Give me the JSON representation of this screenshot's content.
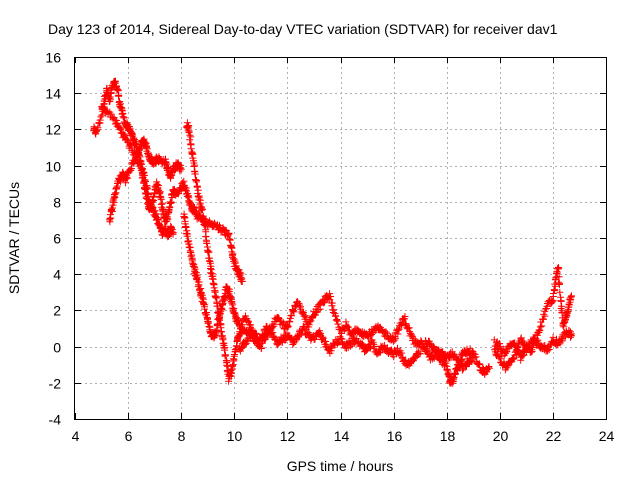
{
  "chart_data": {
    "type": "scatter",
    "title": "Day 123 of 2014, Sidereal Day-to-day VTEC variation (SDTVAR) for receiver dav1",
    "xlabel": "GPS time / hours",
    "ylabel": "SDTVAR / TECUs",
    "xlim": [
      4,
      24
    ],
    "ylim": [
      -4,
      16
    ],
    "xticks": [
      4,
      6,
      8,
      10,
      12,
      14,
      16,
      18,
      20,
      22,
      24
    ],
    "yticks": [
      -4,
      -2,
      0,
      2,
      4,
      6,
      8,
      10,
      12,
      14,
      16
    ],
    "grid": true,
    "marker": "+",
    "color": "#ff0000",
    "series": [
      {
        "name": "SDTVAR",
        "anchors": [
          [
            4.7,
            12.0
          ],
          [
            4.8,
            11.8
          ],
          [
            5.0,
            12.8
          ],
          [
            5.1,
            13.6
          ],
          [
            5.2,
            14.2
          ],
          [
            5.3,
            13.5
          ],
          [
            5.4,
            14.3
          ],
          [
            5.5,
            14.6
          ],
          [
            5.6,
            14.2
          ],
          [
            5.7,
            13.4
          ],
          [
            5.8,
            12.8
          ],
          [
            5.9,
            12.3
          ],
          [
            6.0,
            12.1
          ],
          [
            6.1,
            11.8
          ],
          [
            6.2,
            11.4
          ],
          [
            6.3,
            11.2
          ],
          [
            6.4,
            10.6
          ],
          [
            6.5,
            10.0
          ],
          [
            6.6,
            9.4
          ],
          [
            6.7,
            8.8
          ],
          [
            6.8,
            8.0
          ],
          [
            6.9,
            7.7
          ],
          [
            7.0,
            7.4
          ],
          [
            7.1,
            7.0
          ],
          [
            7.2,
            6.6
          ],
          [
            7.3,
            6.3
          ],
          [
            7.4,
            6.5
          ],
          [
            7.5,
            6.2
          ],
          [
            7.6,
            6.5
          ],
          [
            7.7,
            6.3
          ]
        ],
        "anchors_b": [
          [
            5.3,
            7.0
          ],
          [
            5.4,
            7.6
          ],
          [
            5.5,
            8.4
          ],
          [
            5.6,
            9.0
          ],
          [
            5.7,
            9.3
          ],
          [
            5.8,
            9.5
          ],
          [
            5.9,
            9.2
          ],
          [
            6.0,
            9.6
          ],
          [
            6.2,
            10.2
          ],
          [
            6.4,
            10.8
          ],
          [
            6.5,
            11.2
          ],
          [
            6.6,
            11.4
          ],
          [
            6.7,
            11.0
          ],
          [
            6.8,
            10.4
          ],
          [
            6.9,
            10.3
          ],
          [
            7.0,
            10.2
          ],
          [
            7.1,
            10.4
          ],
          [
            7.2,
            10.3
          ],
          [
            7.4,
            10.2
          ],
          [
            7.5,
            9.8
          ],
          [
            7.6,
            9.4
          ],
          [
            7.7,
            9.8
          ],
          [
            7.8,
            10.0
          ],
          [
            7.9,
            10.0
          ],
          [
            8.0,
            9.8
          ]
        ],
        "anchors_c": [
          [
            5.0,
            13.2
          ],
          [
            5.2,
            13.0
          ],
          [
            5.5,
            12.5
          ],
          [
            5.7,
            12.0
          ],
          [
            5.9,
            11.5
          ],
          [
            6.1,
            11.0
          ],
          [
            6.3,
            10.5
          ],
          [
            6.5,
            9.8
          ],
          [
            6.6,
            9.0
          ],
          [
            6.7,
            8.2
          ],
          [
            6.8,
            7.6
          ],
          [
            6.9,
            7.8
          ],
          [
            7.0,
            8.6
          ],
          [
            7.1,
            9.0
          ],
          [
            7.2,
            8.4
          ],
          [
            7.3,
            7.6
          ],
          [
            7.4,
            7.0
          ],
          [
            7.5,
            7.2
          ],
          [
            7.6,
            8.0
          ],
          [
            7.7,
            8.6
          ],
          [
            7.8,
            8.4
          ],
          [
            8.0,
            8.8
          ],
          [
            8.1,
            9.0
          ],
          [
            8.2,
            8.6
          ],
          [
            8.3,
            8.0
          ],
          [
            8.4,
            7.6
          ],
          [
            8.5,
            7.6
          ],
          [
            8.6,
            7.2
          ],
          [
            8.8,
            7.0
          ],
          [
            9.0,
            6.8
          ],
          [
            9.2,
            6.8
          ],
          [
            9.4,
            6.6
          ],
          [
            9.6,
            6.4
          ],
          [
            9.8,
            6.2
          ],
          [
            9.9,
            5.4
          ],
          [
            10.0,
            4.6
          ],
          [
            10.1,
            4.2
          ],
          [
            10.2,
            4.0
          ],
          [
            10.3,
            3.6
          ]
        ],
        "anchors_d": [
          [
            8.2,
            12.3
          ],
          [
            8.3,
            12.0
          ],
          [
            8.4,
            10.8
          ],
          [
            8.5,
            9.8
          ],
          [
            8.6,
            8.8
          ],
          [
            8.7,
            8.0
          ],
          [
            8.8,
            7.4
          ],
          [
            8.9,
            6.6
          ],
          [
            9.0,
            5.4
          ],
          [
            9.1,
            4.4
          ],
          [
            9.2,
            3.6
          ],
          [
            9.3,
            2.8
          ],
          [
            9.4,
            1.8
          ],
          [
            9.5,
            1.0
          ],
          [
            9.6,
            0.2
          ],
          [
            9.7,
            -0.8
          ],
          [
            9.8,
            -1.8
          ],
          [
            9.9,
            -1.4
          ],
          [
            10.0,
            -0.6
          ],
          [
            10.1,
            0.2
          ],
          [
            10.2,
            0.8
          ],
          [
            10.4,
            1.0
          ],
          [
            10.6,
            0.6
          ],
          [
            10.8,
            0.4
          ]
        ],
        "anchors_e": [
          [
            8.1,
            7.2
          ],
          [
            8.2,
            6.4
          ],
          [
            8.3,
            5.6
          ],
          [
            8.4,
            4.8
          ],
          [
            8.5,
            4.2
          ],
          [
            8.6,
            3.8
          ],
          [
            8.7,
            3.2
          ],
          [
            8.8,
            2.6
          ],
          [
            8.9,
            2.0
          ],
          [
            9.0,
            1.4
          ],
          [
            9.1,
            0.8
          ],
          [
            9.2,
            0.6
          ],
          [
            9.3,
            0.8
          ],
          [
            9.4,
            1.4
          ],
          [
            9.5,
            2.0
          ],
          [
            9.6,
            2.6
          ],
          [
            9.7,
            3.2
          ],
          [
            9.8,
            3.0
          ],
          [
            9.9,
            2.4
          ],
          [
            10.0,
            1.8
          ],
          [
            10.1,
            1.4
          ],
          [
            10.2,
            1.2
          ]
        ],
        "anchors_f": [
          [
            10.2,
            1.0
          ],
          [
            10.4,
            1.6
          ],
          [
            10.6,
            1.2
          ],
          [
            10.8,
            0.4
          ],
          [
            11.0,
            0.0
          ],
          [
            11.2,
            0.6
          ],
          [
            11.4,
            1.0
          ],
          [
            11.6,
            1.6
          ],
          [
            11.8,
            1.2
          ],
          [
            12.0,
            1.0
          ],
          [
            12.2,
            2.0
          ],
          [
            12.4,
            2.4
          ],
          [
            12.6,
            1.8
          ],
          [
            12.8,
            1.2
          ],
          [
            13.0,
            1.8
          ],
          [
            13.2,
            2.2
          ],
          [
            13.4,
            2.6
          ],
          [
            13.6,
            2.8
          ],
          [
            13.8,
            1.6
          ],
          [
            14.0,
            0.8
          ],
          [
            14.2,
            1.2
          ],
          [
            14.4,
            0.6
          ],
          [
            14.6,
            1.0
          ],
          [
            14.8,
            0.8
          ],
          [
            15.0,
            0.6
          ],
          [
            15.2,
            0.8
          ],
          [
            15.4,
            1.0
          ],
          [
            15.6,
            0.8
          ],
          [
            15.8,
            0.6
          ],
          [
            16.0,
            0.4
          ],
          [
            16.2,
            1.0
          ],
          [
            16.4,
            1.6
          ],
          [
            16.6,
            0.8
          ],
          [
            16.8,
            0.2
          ],
          [
            17.0,
            0.0
          ]
        ],
        "anchors_g": [
          [
            10.2,
            -0.2
          ],
          [
            10.4,
            0.2
          ],
          [
            10.6,
            0.8
          ],
          [
            10.8,
            0.6
          ],
          [
            11.0,
            0.4
          ],
          [
            11.2,
            1.0
          ],
          [
            11.4,
            0.8
          ],
          [
            11.6,
            0.2
          ],
          [
            11.8,
            0.4
          ],
          [
            12.0,
            0.6
          ],
          [
            12.2,
            0.2
          ],
          [
            12.4,
            0.6
          ],
          [
            12.6,
            1.0
          ],
          [
            12.8,
            0.6
          ],
          [
            13.0,
            0.4
          ],
          [
            13.2,
            0.8
          ],
          [
            13.4,
            0.2
          ],
          [
            13.6,
            -0.2
          ],
          [
            13.8,
            0.2
          ],
          [
            14.0,
            0.4
          ],
          [
            14.2,
            0.0
          ],
          [
            14.4,
            0.2
          ],
          [
            14.6,
            0.4
          ],
          [
            14.8,
            0.0
          ],
          [
            15.0,
            -0.2
          ],
          [
            15.2,
            0.2
          ],
          [
            15.4,
            -0.4
          ],
          [
            15.6,
            0.0
          ],
          [
            15.8,
            -0.2
          ],
          [
            16.0,
            -0.4
          ],
          [
            16.2,
            -0.2
          ],
          [
            16.4,
            -0.8
          ],
          [
            16.6,
            -1.0
          ],
          [
            16.8,
            -0.6
          ],
          [
            17.0,
            -0.4
          ]
        ],
        "anchors_h": [
          [
            17.0,
            0.2
          ],
          [
            17.2,
            -0.2
          ],
          [
            17.4,
            -0.6
          ],
          [
            17.6,
            -0.4
          ],
          [
            17.8,
            -0.8
          ],
          [
            18.0,
            -1.0
          ],
          [
            18.1,
            -1.8
          ],
          [
            18.2,
            -2.0
          ],
          [
            18.3,
            -1.6
          ],
          [
            18.4,
            -1.2
          ],
          [
            18.5,
            -0.8
          ],
          [
            18.6,
            -0.4
          ],
          [
            18.8,
            -0.2
          ],
          [
            19.0,
            -0.4
          ],
          [
            19.2,
            -1.0
          ],
          [
            19.4,
            -1.4
          ],
          [
            19.6,
            -1.2
          ]
        ],
        "anchors_i": [
          [
            17.2,
            0.4
          ],
          [
            17.4,
            0.0
          ],
          [
            17.6,
            -0.2
          ],
          [
            17.8,
            -0.4
          ],
          [
            18.0,
            -0.6
          ],
          [
            18.2,
            -0.4
          ],
          [
            18.4,
            -0.8
          ],
          [
            18.6,
            -1.2
          ],
          [
            18.8,
            -0.8
          ],
          [
            19.0,
            -0.6
          ]
        ],
        "anchors_j": [
          [
            19.8,
            -0.2
          ],
          [
            20.0,
            -0.6
          ],
          [
            20.2,
            -1.2
          ],
          [
            20.4,
            -0.8
          ],
          [
            20.6,
            -0.4
          ],
          [
            20.8,
            0.4
          ],
          [
            21.0,
            0.0
          ],
          [
            21.2,
            -0.2
          ],
          [
            21.4,
            0.6
          ],
          [
            21.6,
            1.4
          ],
          [
            21.8,
            2.4
          ],
          [
            22.0,
            2.6
          ],
          [
            22.1,
            3.6
          ],
          [
            22.2,
            4.4
          ],
          [
            22.3,
            2.4
          ],
          [
            22.4,
            1.2
          ],
          [
            22.5,
            1.6
          ],
          [
            22.6,
            2.2
          ],
          [
            22.7,
            2.8
          ]
        ],
        "anchors_k": [
          [
            19.8,
            0.2
          ],
          [
            20.0,
            0.0
          ],
          [
            20.2,
            -0.4
          ],
          [
            20.4,
            0.2
          ],
          [
            20.6,
            0.0
          ],
          [
            20.8,
            -0.6
          ],
          [
            21.0,
            -0.2
          ],
          [
            21.2,
            0.4
          ],
          [
            21.4,
            0.2
          ],
          [
            21.6,
            0.0
          ],
          [
            21.8,
            -0.2
          ],
          [
            22.0,
            0.4
          ],
          [
            22.2,
            0.2
          ],
          [
            22.4,
            0.6
          ],
          [
            22.6,
            0.8
          ],
          [
            22.7,
            0.6
          ]
        ]
      }
    ]
  }
}
